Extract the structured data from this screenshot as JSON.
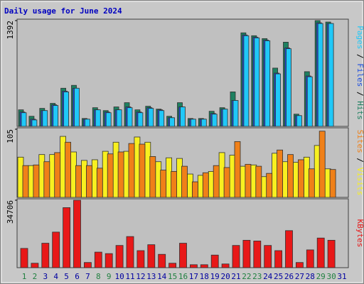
{
  "title": "Daily usage for June 2024",
  "chart_data": [
    {
      "type": "bar",
      "ylim": [
        0,
        1392
      ],
      "yticks": [
        1392
      ],
      "series": [
        {
          "name": "Hits",
          "color": "#1e8060",
          "values": [
            218,
            133,
            237,
            303,
            502,
            540,
            104,
            246,
            208,
            256,
            312,
            218,
            265,
            227,
            133,
            312,
            104,
            104,
            199,
            246,
            454,
            1231,
            1193,
            1155,
            767,
            1108,
            161,
            720,
            1392,
            1373,
            null
          ]
        },
        {
          "name": "Files",
          "color": "#2050e0",
          "values": [
            189,
            95,
            208,
            284,
            464,
            502,
            95,
            218,
            189,
            218,
            256,
            189,
            246,
            218,
            114,
            256,
            95,
            95,
            170,
            227,
            341,
            1203,
            1174,
            1136,
            701,
            1032,
            142,
            663,
            1363,
            1354,
            null
          ]
        },
        {
          "name": "Pages",
          "color": "#20c8f8",
          "values": [
            180,
            85,
            208,
            275,
            454,
            502,
            95,
            218,
            180,
            218,
            246,
            180,
            237,
            208,
            114,
            256,
            95,
            95,
            161,
            227,
            341,
            1193,
            1165,
            1127,
            691,
            1022,
            142,
            653,
            1354,
            1354,
            null
          ]
        }
      ]
    },
    {
      "type": "bar",
      "ylim": [
        0,
        105
      ],
      "yticks": [
        105
      ],
      "series": [
        {
          "name": "Visits",
          "color": "#f8f020",
          "values": [
            62,
            49,
            66,
            66,
            94,
            70,
            57,
            58,
            71,
            85,
            71,
            93,
            85,
            55,
            61,
            60,
            36,
            34,
            40,
            69,
            65,
            48,
            50,
            32,
            68,
            55,
            54,
            62,
            80,
            44,
            null
          ]
        },
        {
          "name": "Sites",
          "color": "#f08018",
          "values": [
            49,
            50,
            55,
            69,
            85,
            49,
            49,
            45,
            67,
            70,
            83,
            82,
            63,
            42,
            40,
            48,
            24,
            38,
            49,
            46,
            86,
            51,
            48,
            37,
            73,
            66,
            58,
            44,
            102,
            43,
            null
          ]
        }
      ]
    },
    {
      "type": "bar",
      "ylim": [
        0,
        34706
      ],
      "yticks": [
        34706
      ],
      "categories": [
        "1",
        "2",
        "3",
        "4",
        "5",
        "6",
        "7",
        "8",
        "9",
        "10",
        "11",
        "12",
        "13",
        "14",
        "15",
        "16",
        "17",
        "18",
        "19",
        "20",
        "21",
        "22",
        "23",
        "24",
        "25",
        "26",
        "27",
        "28",
        "29",
        "30",
        "31"
      ],
      "x_label_colors": [
        "#208040",
        "#208040",
        "#0000a0",
        "#0000a0",
        "#0000a0",
        "#0000a0",
        "#0000a0",
        "#208040",
        "#208040",
        "#0000a0",
        "#0000a0",
        "#0000a0",
        "#0000a0",
        "#0000a0",
        "#208040",
        "#208040",
        "#0000a0",
        "#0000a0",
        "#0000a0",
        "#0000a0",
        "#0000a0",
        "#208040",
        "#208040",
        "#0000a0",
        "#0000a0",
        "#0000a0",
        "#0000a0",
        "#0000a0",
        "#208040",
        "#208040",
        "#0000a0"
      ],
      "series": [
        {
          "name": "KBytes",
          "color": "#e81818",
          "values": [
            9916,
            2288,
            12586,
            18306,
            30892,
            34706,
            2670,
            8009,
            7246,
            11441,
            16018,
            8772,
            11823,
            6865,
            2288,
            12586,
            1526,
            1526,
            6484,
            1907,
            11441,
            14111,
            13730,
            11441,
            8772,
            19069,
            2670,
            9153,
            15255,
            14111,
            null
          ]
        }
      ]
    }
  ]
}
